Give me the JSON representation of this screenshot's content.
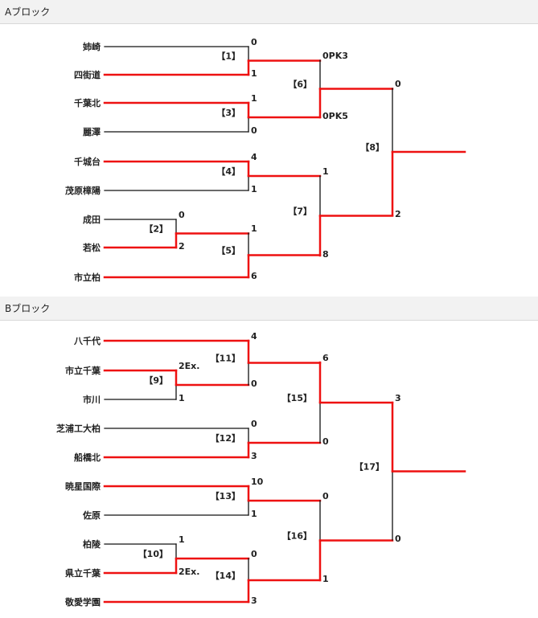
{
  "colors": {
    "win": "#ee1111",
    "lose": "#111111"
  },
  "blocks": [
    {
      "id": "a",
      "title": "Aブロック",
      "teams": [
        "姉崎",
        "四街道",
        "千葉北",
        "麗澤",
        "千城台",
        "茂原樟陽",
        "成田",
        "若松",
        "市立柏"
      ],
      "matches": [
        {
          "label": "【1】",
          "top_score": "0",
          "bottom_score": "1",
          "winner": "bottom"
        },
        {
          "label": "【3】",
          "top_score": "1",
          "bottom_score": "0",
          "winner": "top"
        },
        {
          "label": "【6】",
          "top_score": "0PK3",
          "bottom_score": "0PK5",
          "winner": "bottom"
        },
        {
          "label": "【4】",
          "top_score": "4",
          "bottom_score": "1",
          "winner": "top"
        },
        {
          "label": "【2】",
          "top_score": "0",
          "bottom_score": "2",
          "winner": "bottom"
        },
        {
          "label": "【5】",
          "top_score": "1",
          "bottom_score": "6",
          "winner": "bottom"
        },
        {
          "label": "【7】",
          "top_score": "1",
          "bottom_score": "8",
          "winner": "bottom"
        },
        {
          "label": "【8】",
          "top_score": "0",
          "bottom_score": "2",
          "winner": "bottom"
        }
      ]
    },
    {
      "id": "b",
      "title": "Bブロック",
      "teams": [
        "八千代",
        "市立千葉",
        "市川",
        "芝浦工大柏",
        "船橋北",
        "暁星国際",
        "佐原",
        "柏陵",
        "県立千葉",
        "敬愛学園"
      ],
      "matches": [
        {
          "label": "【9】",
          "top_score": "2Ex.",
          "bottom_score": "1",
          "winner": "top"
        },
        {
          "label": "【11】",
          "top_score": "4",
          "bottom_score": "0",
          "winner": "top"
        },
        {
          "label": "【12】",
          "top_score": "0",
          "bottom_score": "3",
          "winner": "bottom"
        },
        {
          "label": "【15】",
          "top_score": "6",
          "bottom_score": "0",
          "winner": "top"
        },
        {
          "label": "【13】",
          "top_score": "10",
          "bottom_score": "1",
          "winner": "top"
        },
        {
          "label": "【10】",
          "top_score": "1",
          "bottom_score": "2Ex.",
          "winner": "bottom"
        },
        {
          "label": "【14】",
          "top_score": "0",
          "bottom_score": "3",
          "winner": "bottom"
        },
        {
          "label": "【16】",
          "top_score": "0",
          "bottom_score": "1",
          "winner": "bottom"
        },
        {
          "label": "【17】",
          "top_score": "3",
          "bottom_score": "0",
          "winner": "top"
        }
      ]
    }
  ]
}
